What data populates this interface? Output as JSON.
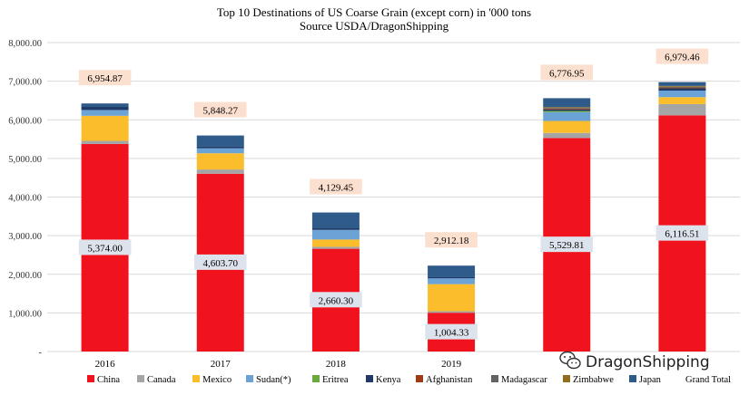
{
  "chart_data": {
    "type": "bar",
    "stacked": true,
    "title": "Top 10 Destinations of US Coarse Grain (except corn) in '000 tons",
    "subtitle": "Source USDA/DragonShipping",
    "xlabel": "",
    "ylabel": "",
    "ylim": [
      0,
      8000
    ],
    "y_ticks": [
      "-",
      "1,000.00",
      "2,000.00",
      "3,000.00",
      "4,000.00",
      "5,000.00",
      "6,000.00",
      "7,000.00",
      "8,000.00"
    ],
    "grid": true,
    "legend_position": "bottom",
    "categories": [
      "2016",
      "2017",
      "2018",
      "2019",
      "",
      ""
    ],
    "series": [
      {
        "name": "China",
        "color": "#f0131e",
        "values": [
          5374.0,
          4603.7,
          2660.3,
          1004.33,
          5529.81,
          6116.51
        ]
      },
      {
        "name": "Canada",
        "color": "#a5a5a5",
        "values": [
          80,
          110,
          50,
          40,
          130,
          290
        ]
      },
      {
        "name": "Mexico",
        "color": "#fbbd2c",
        "values": [
          650,
          420,
          190,
          700,
          310,
          180
        ]
      },
      {
        "name": "Sudan(*)",
        "color": "#6ba3d6",
        "values": [
          150,
          130,
          250,
          150,
          230,
          170
        ]
      },
      {
        "name": "Eritrea",
        "color": "#6aaa3f",
        "values": [
          0,
          0,
          0,
          0,
          30,
          0
        ]
      },
      {
        "name": "Kenya",
        "color": "#1f3a68",
        "values": [
          80,
          40,
          40,
          30,
          40,
          60
        ]
      },
      {
        "name": "Afghanistan",
        "color": "#9c3b14",
        "values": [
          0,
          0,
          0,
          0,
          20,
          20
        ]
      },
      {
        "name": "Madagascar",
        "color": "#636363",
        "values": [
          0,
          0,
          0,
          0,
          20,
          20
        ]
      },
      {
        "name": "Zimbabwe",
        "color": "#8f7020",
        "values": [
          0,
          0,
          0,
          0,
          20,
          20
        ]
      },
      {
        "name": "Japan",
        "color": "#2f5b8a",
        "values": [
          90,
          290,
          410,
          300,
          230,
          100
        ]
      }
    ],
    "grand_total": {
      "name": "Grand Total",
      "values": [
        6954.87,
        5848.27,
        4129.45,
        2912.18,
        6776.95,
        6979.46
      ]
    },
    "data_labels": {
      "china": [
        "5,374.00",
        "4,603.70",
        "2,660.30",
        "1,004.33",
        "5,529.81",
        "6,116.51"
      ],
      "grand_total": [
        "6,954.87",
        "5,848.27",
        "4,129.45",
        "2,912.18",
        "6,776.95",
        "6,979.46"
      ]
    }
  },
  "watermark": {
    "text": "DragonShipping",
    "icon": "wechat-icon"
  }
}
